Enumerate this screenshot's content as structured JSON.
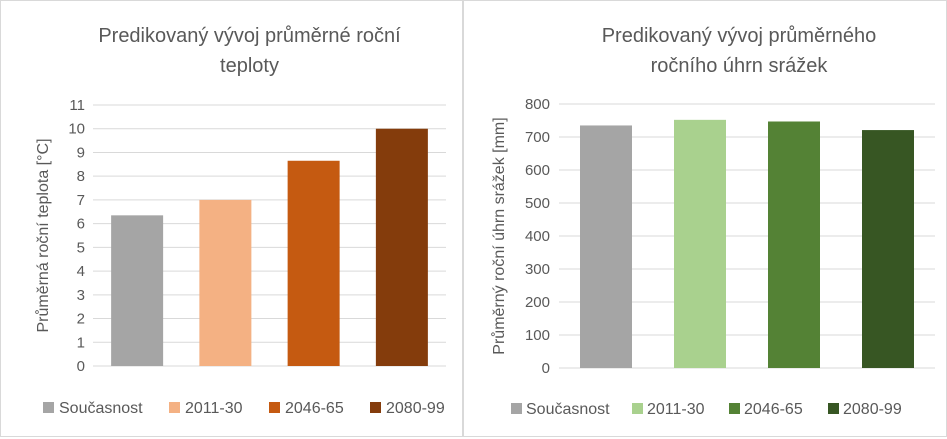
{
  "chart_data": [
    {
      "type": "bar",
      "title_lines": [
        "Predikovaný vývoj průměrné roční",
        "teploty"
      ],
      "xlabel": "",
      "ylabel": "Průměrná roční teplota [°C]",
      "ylim": [
        0,
        11
      ],
      "yticks": [
        "0",
        "1",
        "2",
        "3",
        "4",
        "5",
        "6",
        "7",
        "8",
        "9",
        "10",
        "11"
      ],
      "grid": true,
      "legend_position": "bottom",
      "categories": [
        "Současnost",
        "2011-30",
        "2046-65",
        "2080-99"
      ],
      "values": [
        6.35,
        7.0,
        8.65,
        10.0
      ],
      "colors": [
        "#a5a5a5",
        "#f4b183",
        "#c55a11",
        "#843c0c"
      ]
    },
    {
      "type": "bar",
      "title_lines": [
        "Predikovaný vývoj průměrného",
        "ročního úhrn srážek"
      ],
      "xlabel": "",
      "ylabel": "Průměrný roční úhrn srážek [mm]",
      "ylim": [
        0,
        800
      ],
      "yticks": [
        "0",
        "100",
        "200",
        "300",
        "400",
        "500",
        "600",
        "700",
        "800"
      ],
      "grid": true,
      "legend_position": "bottom",
      "categories": [
        "Současnost",
        "2011-30",
        "2046-65",
        "2080-99"
      ],
      "values": [
        735,
        752,
        747,
        721
      ],
      "colors": [
        "#a5a5a5",
        "#a9d18e",
        "#548235",
        "#375623"
      ]
    }
  ]
}
